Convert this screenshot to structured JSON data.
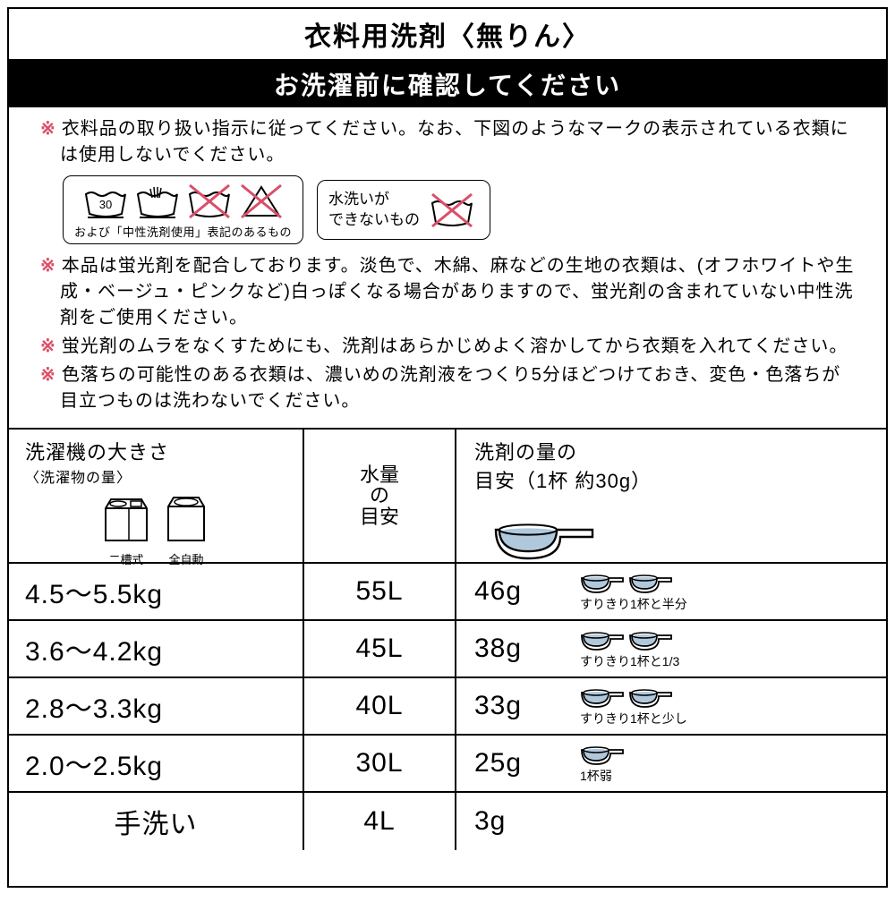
{
  "title": "衣料用洗剤〈無りん〉",
  "subtitle": "お洗濯前に確認してください",
  "instructions": {
    "marker": "※",
    "item1": "衣料品の取り扱い指示に従ってください。なお、下図のようなマークの表示されている衣類には使用しないでください。",
    "group1_caption": "および「中性洗剤使用」表記のあるもの",
    "group2_text": "水洗いが\nできないもの",
    "item2": "本品は蛍光剤を配合しております。淡色で、木綿、麻などの生地の衣類は、(オフホワイトや生成・ベージュ・ピンクなど)白っぽくなる場合がありますので、蛍光剤の含まれていない中性洗剤をご使用ください。",
    "item3": "蛍光剤のムラをなくすためにも、洗剤はあらかじめよく溶かしてから衣類を入れてください。",
    "item4": "色落ちの可能性のある衣類は、濃いめの洗剤液をつくり5分ほどつけておき、変色・色落ちが目立つものは洗わないでください。"
  },
  "table": {
    "header": {
      "col1_label": "洗濯機の大きさ",
      "col1_sublabel": "〈洗濯物の量〉",
      "washer1_caption": "二槽式",
      "washer2_caption": "全自動",
      "col2_l1": "水量",
      "col2_l2": "の",
      "col2_l3": "目安",
      "col3_label": "洗剤の量の",
      "col3_sublabel": "目安（1杯 約30g）"
    },
    "rows": [
      {
        "size": "4.5〜5.5kg",
        "water": "55L",
        "amount": "46g",
        "scoops": 2,
        "caption": "すりきり1杯と半分"
      },
      {
        "size": "3.6〜4.2kg",
        "water": "45L",
        "amount": "38g",
        "scoops": 2,
        "caption": "すりきり1杯と1/3"
      },
      {
        "size": "2.8〜3.3kg",
        "water": "40L",
        "amount": "33g",
        "scoops": 2,
        "caption": "すりきり1杯と少し"
      },
      {
        "size": "2.0〜2.5kg",
        "water": "30L",
        "amount": "25g",
        "scoops": 1,
        "caption": "1杯弱"
      },
      {
        "size": "手洗い",
        "water": "4L",
        "amount": "3g",
        "scoops": 0,
        "caption": ""
      }
    ]
  },
  "colors": {
    "marker": "#d94f6a",
    "cross": "#d94f6a",
    "powder": "#b0c8dc",
    "text": "#000000",
    "bg": "#ffffff"
  },
  "icon_styles": {
    "wash_icon_size": 52,
    "stroke": "#000000",
    "stroke_width": 2
  }
}
